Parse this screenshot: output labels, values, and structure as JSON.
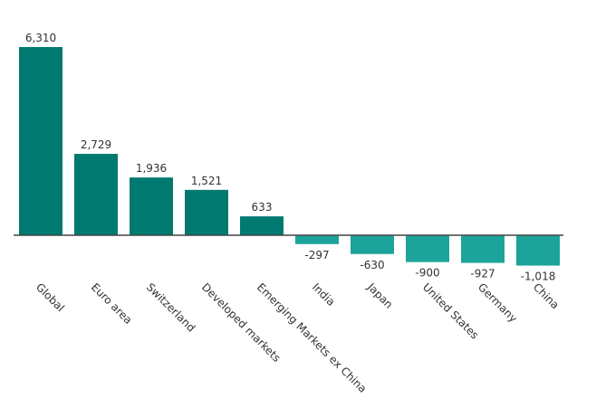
{
  "chart_data": {
    "type": "bar",
    "title": "",
    "xlabel": "",
    "ylabel": "",
    "categories": [
      "Global",
      "Euro area",
      "Switzerland",
      "Developed markets",
      "Emerging Markets ex China",
      "India",
      "Japan",
      "United States",
      "Germany",
      "China"
    ],
    "values": [
      6310,
      2729,
      1936,
      1521,
      633,
      -297,
      -630,
      -900,
      -927,
      -1018
    ],
    "value_labels": [
      "6,310",
      "2,729",
      "1,936",
      "1,521",
      "633",
      "-297",
      "-630",
      "-900",
      "-927",
      "-1,018"
    ],
    "ylim": [
      -1018,
      6310
    ],
    "grid": false,
    "colors": {
      "positive": "#007a70",
      "negative": "#1ca49a",
      "axis": "#444444"
    }
  }
}
